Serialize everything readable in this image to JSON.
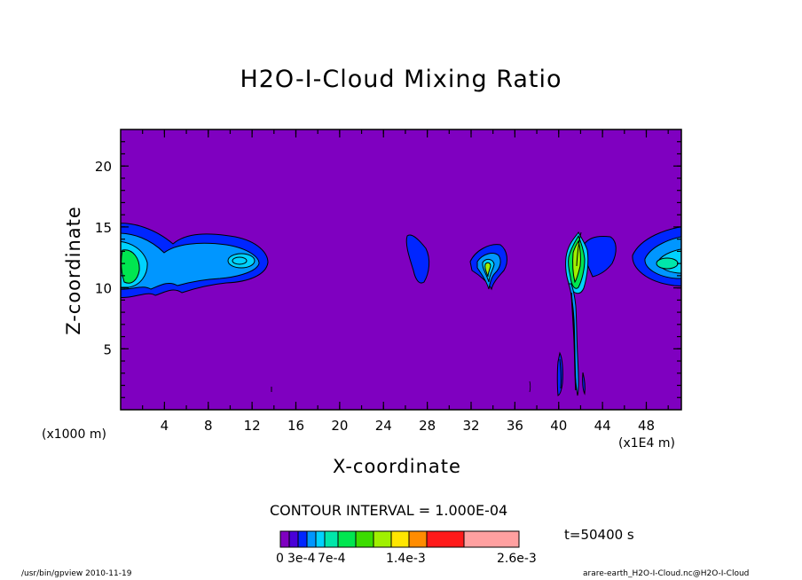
{
  "title": "H2O-I-Cloud Mixing Ratio",
  "contour_interval": "CONTOUR INTERVAL = 1.000E-04",
  "time_label": "t=50400 s",
  "footer_left": "/usr/bin/gpview  2010-11-19",
  "footer_right": "arare-earth_H2O-I-Cloud.nc@H2O-I-Cloud",
  "colorbar": {
    "colors": [
      "#7f00c0",
      "#4a00d8",
      "#0026ff",
      "#0096ff",
      "#00d2ff",
      "#00e6aa",
      "#00e650",
      "#3cdc00",
      "#a0f000",
      "#ffe600",
      "#ff8c00",
      "#ff1a1a",
      "#ffa0a0"
    ],
    "labels": [
      "0",
      "3e-4",
      "7e-4",
      "1.4e-3",
      "2.6e-3"
    ]
  },
  "chart_data": {
    "type": "heatmap",
    "title": "H2O-I-Cloud Mixing Ratio",
    "xlabel": "X-coordinate",
    "ylabel": "Z-coordinate",
    "x_unit_label": "(x1000 m)",
    "x_scale_label": "(x1E4 m)",
    "xticks": [
      "4",
      "8",
      "12",
      "16",
      "20",
      "24",
      "28",
      "32",
      "36",
      "40",
      "44",
      "48"
    ],
    "yticks": [
      "5",
      "10",
      "15",
      "20"
    ],
    "xlim": [
      0,
      51.2
    ],
    "ylim": [
      0,
      23
    ],
    "contour_interval": 0.0001,
    "time_s": 50400,
    "levels": [
      0,
      0.0003,
      0.0007,
      0.0014,
      0.0026
    ],
    "background_color": "#7f00c0",
    "cloud_features": [
      {
        "x_center": 5,
        "z_center": 12,
        "description": "wide band at left edge"
      },
      {
        "x_center": 27,
        "z_center": 12,
        "description": "small cloud"
      },
      {
        "x_center": 34,
        "z_center": 12,
        "description": "small cloud with green core"
      },
      {
        "x_center": 42,
        "z_center": 12,
        "description": "convective column"
      },
      {
        "x_center": 49,
        "z_center": 12,
        "description": "band at right edge"
      }
    ]
  }
}
